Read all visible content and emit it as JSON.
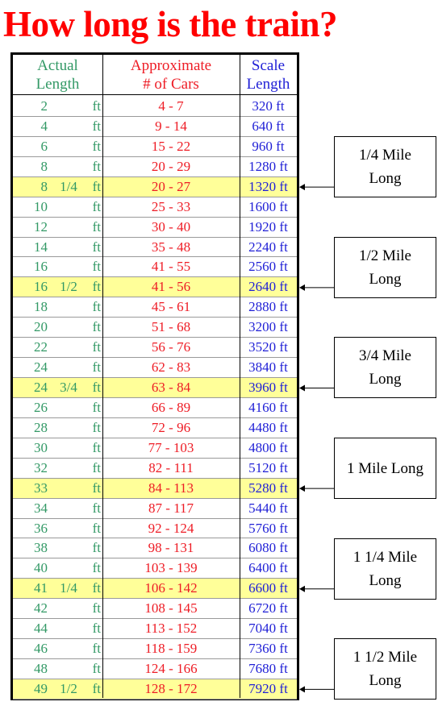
{
  "title": "How long is the train?",
  "table": {
    "headers": [
      {
        "lines": [
          "Actual",
          "Length"
        ]
      },
      {
        "lines": [
          "Approximate",
          "# of Cars"
        ]
      },
      {
        "lines": [
          "Scale",
          "Length"
        ]
      }
    ],
    "rows": [
      {
        "actual": "2",
        "unit": "ft",
        "cars": "4 - 7",
        "scale": "320 ft"
      },
      {
        "actual": "4",
        "unit": "ft",
        "cars": "9 - 14",
        "scale": "640 ft"
      },
      {
        "actual": "6",
        "unit": "ft",
        "cars": "15 - 22",
        "scale": "960 ft"
      },
      {
        "actual": "8",
        "unit": "ft",
        "cars": "20 - 29",
        "scale": "1280 ft"
      },
      {
        "actual": "8",
        "fraction": "1/4",
        "unit": "ft",
        "cars": "20 - 27",
        "scale": "1320 ft",
        "highlight": true
      },
      {
        "actual": "10",
        "unit": "ft",
        "cars": "25 - 33",
        "scale": "1600 ft"
      },
      {
        "actual": "12",
        "unit": "ft",
        "cars": "30 - 40",
        "scale": "1920 ft"
      },
      {
        "actual": "14",
        "unit": "ft",
        "cars": "35 - 48",
        "scale": "2240 ft"
      },
      {
        "actual": "16",
        "unit": "ft",
        "cars": "41 - 55",
        "scale": "2560 ft"
      },
      {
        "actual": "16",
        "fraction": "1/2",
        "unit": "ft",
        "cars": "41 - 56",
        "scale": "2640 ft",
        "highlight": true
      },
      {
        "actual": "18",
        "unit": "ft",
        "cars": "45 - 61",
        "scale": "2880 ft"
      },
      {
        "actual": "20",
        "unit": "ft",
        "cars": "51 - 68",
        "scale": "3200 ft"
      },
      {
        "actual": "22",
        "unit": "ft",
        "cars": "56 - 76",
        "scale": "3520 ft"
      },
      {
        "actual": "24",
        "unit": "ft",
        "cars": "62 - 83",
        "scale": "3840 ft"
      },
      {
        "actual": "24",
        "fraction": "3/4",
        "unit": "ft",
        "cars": "63 - 84",
        "scale": "3960 ft",
        "highlight": true
      },
      {
        "actual": "26",
        "unit": "ft",
        "cars": "66 - 89",
        "scale": "4160 ft"
      },
      {
        "actual": "28",
        "unit": "ft",
        "cars": "72 - 96",
        "scale": "4480 ft"
      },
      {
        "actual": "30",
        "unit": "ft",
        "cars": "77 - 103",
        "scale": "4800 ft"
      },
      {
        "actual": "32",
        "unit": "ft",
        "cars": "82 - 111",
        "scale": "5120 ft"
      },
      {
        "actual": "33",
        "unit": "ft",
        "cars": "84 - 113",
        "scale": "5280 ft",
        "highlight": true
      },
      {
        "actual": "34",
        "unit": "ft",
        "cars": "87 - 117",
        "scale": "5440 ft"
      },
      {
        "actual": "36",
        "unit": "ft",
        "cars": "92 - 124",
        "scale": "5760 ft"
      },
      {
        "actual": "38",
        "unit": "ft",
        "cars": "98 - 131",
        "scale": "6080 ft"
      },
      {
        "actual": "40",
        "unit": "ft",
        "cars": "103 - 139",
        "scale": "6400 ft"
      },
      {
        "actual": "41",
        "fraction": "1/4",
        "unit": "ft",
        "cars": "106 - 142",
        "scale": "6600 ft",
        "highlight": true
      },
      {
        "actual": "42",
        "unit": "ft",
        "cars": "108 - 145",
        "scale": "6720 ft"
      },
      {
        "actual": "44",
        "unit": "ft",
        "cars": "113 - 152",
        "scale": "7040 ft"
      },
      {
        "actual": "46",
        "unit": "ft",
        "cars": "118 - 159",
        "scale": "7360 ft"
      },
      {
        "actual": "48",
        "unit": "ft",
        "cars": "124 - 166",
        "scale": "7680 ft"
      },
      {
        "actual": "49",
        "fraction": "1/2",
        "unit": "ft",
        "cars": "128 - 172",
        "scale": "7920 ft",
        "highlight": true
      }
    ]
  },
  "callouts": [
    {
      "lines": [
        "1/4 Mile",
        "Long"
      ]
    },
    {
      "lines": [
        "1/2 Mile",
        "Long"
      ]
    },
    {
      "lines": [
        "3/4 Mile",
        "Long"
      ]
    },
    {
      "lines": [
        "1 Mile Long"
      ]
    },
    {
      "lines": [
        "1 1/4 Mile",
        "Long"
      ]
    },
    {
      "lines": [
        "1 1/2 Mile",
        "Long"
      ]
    }
  ]
}
